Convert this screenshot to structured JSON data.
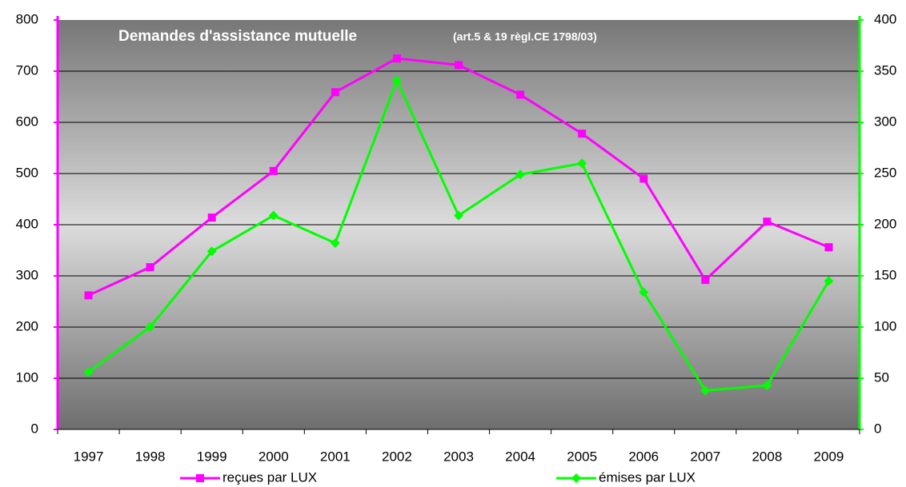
{
  "chart_data": {
    "type": "line",
    "title": "Demandes d'assistance mutuelle",
    "subtitle": "(art.5 & 19 règl.CE 1798/03)",
    "categories": [
      "1997",
      "1998",
      "1999",
      "2000",
      "2001",
      "2002",
      "2003",
      "2004",
      "2005",
      "2006",
      "2007",
      "2008",
      "2009"
    ],
    "series": [
      {
        "name": "reçues par LUX",
        "color": "#ff00ff",
        "marker": "square",
        "values": [
          262,
          317,
          414,
          505,
          659,
          725,
          712,
          654,
          578,
          490,
          292,
          406,
          356
        ]
      },
      {
        "name": "émises par LUX",
        "color": "#00ff00",
        "marker": "diamond",
        "axis": "y2",
        "values": [
          56,
          100,
          174,
          209,
          182,
          341,
          209,
          249,
          260,
          134,
          38,
          43,
          145
        ]
      }
    ],
    "ylim": [
      0,
      800
    ],
    "yticks": [
      0,
      100,
      200,
      300,
      400,
      500,
      600,
      700,
      800
    ],
    "y2lim": [
      0,
      400
    ],
    "y2ticks": [
      0,
      50,
      100,
      150,
      200,
      250,
      300,
      350,
      400
    ],
    "grid": true,
    "legend": "bottom"
  }
}
